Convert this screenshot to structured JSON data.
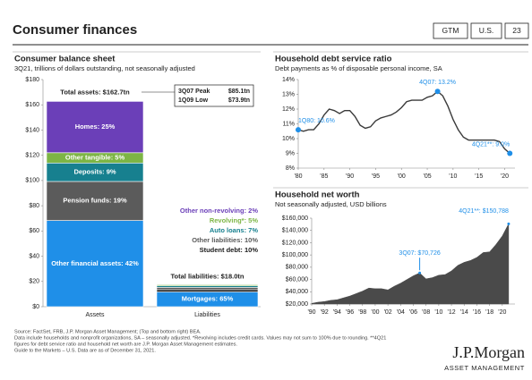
{
  "header": {
    "title": "Consumer finances",
    "tabs": [
      "GTM",
      "U.S.",
      "23"
    ]
  },
  "chart_data": [
    {
      "type": "stacked-bar",
      "title": "Consumer balance sheet",
      "subtitle": "3Q21, trillions of dollars outstanding, not seasonally adjusted",
      "categories": [
        "Assets",
        "Liabilities"
      ],
      "ylim": [
        0,
        180
      ],
      "yticks": [
        {
          "value": 0,
          "label": "$0"
        },
        {
          "value": 20,
          "label": "$20"
        },
        {
          "value": 40,
          "label": "$40"
        },
        {
          "value": 60,
          "label": "$60"
        },
        {
          "value": 80,
          "label": "$80"
        },
        {
          "value": 100,
          "label": "$100"
        },
        {
          "value": 120,
          "label": "$120"
        },
        {
          "value": 140,
          "label": "$140"
        },
        {
          "value": 160,
          "label": "$160"
        },
        {
          "value": 180,
          "label": "$180"
        }
      ],
      "stacks": [
        {
          "total": {
            "value": 162.7,
            "label": "Total assets: $162.7tn"
          },
          "segments": [
            {
              "label": "Other financial assets: 42%",
              "value": 42,
              "color": "#1f8fe8"
            },
            {
              "label": "Pension funds: 19%",
              "value": 19,
              "color": "#5b5b5b"
            },
            {
              "label": "Deposits: 9%",
              "value": 9,
              "color": "#17808f"
            },
            {
              "label": "Other tangible: 5%",
              "value": 5,
              "color": "#7db545"
            },
            {
              "label": "Homes: 25%",
              "value": 25,
              "color": "#6b3fb8"
            }
          ]
        },
        {
          "total": {
            "value": 18.0,
            "label": "Total liabilities: $18.0tn"
          },
          "segments": [
            {
              "label": "Mortgages: 65%",
              "value": 65,
              "color": "#1f8fe8"
            },
            {
              "label": "Student debt: 10%",
              "value": 10,
              "color": "#1a1a1a"
            },
            {
              "label": "Other liabilities: 10%",
              "value": 10,
              "color": "#5b5b5b"
            },
            {
              "label": "Auto loans: 7%",
              "value": 7,
              "color": "#17808f"
            },
            {
              "label": "Revolving*: 5%",
              "value": 5,
              "color": "#7db545"
            },
            {
              "label": "Other non-revolving: 2%",
              "value": 2,
              "color": "#6b3fb8"
            }
          ]
        }
      ],
      "callout": [
        [
          "3Q07 Peak",
          "$85.1tn"
        ],
        [
          "1Q09 Low",
          "$73.9tn"
        ]
      ]
    },
    {
      "type": "line",
      "title": "Household debt service ratio",
      "subtitle": "Debt payments as % of disposable personal income, SA",
      "x": [
        1980,
        1981,
        1982,
        1983,
        1984,
        1985,
        1986,
        1987,
        1988,
        1989,
        1990,
        1991,
        1992,
        1993,
        1994,
        1995,
        1996,
        1997,
        1998,
        1999,
        2000,
        2001,
        2002,
        2003,
        2004,
        2005,
        2006,
        2007,
        2008,
        2009,
        2010,
        2011,
        2012,
        2013,
        2014,
        2015,
        2016,
        2017,
        2018,
        2019,
        2020,
        2021
      ],
      "values": [
        10.6,
        10.5,
        10.6,
        10.6,
        11.0,
        11.6,
        12.0,
        11.9,
        11.7,
        11.9,
        11.9,
        11.5,
        10.9,
        10.7,
        10.8,
        11.2,
        11.4,
        11.5,
        11.6,
        11.8,
        12.1,
        12.5,
        12.6,
        12.6,
        12.6,
        12.8,
        12.9,
        13.2,
        12.9,
        12.2,
        11.3,
        10.6,
        10.1,
        9.9,
        9.9,
        9.9,
        9.9,
        9.9,
        9.9,
        9.8,
        9.3,
        9.0
      ],
      "color": "#3a3a3a",
      "xlim": [
        1980,
        2022
      ],
      "xticks": [
        {
          "value": 1980,
          "label": "'80"
        },
        {
          "value": 1985,
          "label": "'85"
        },
        {
          "value": 1990,
          "label": "'90"
        },
        {
          "value": 1995,
          "label": "'95"
        },
        {
          "value": 2000,
          "label": "'00"
        },
        {
          "value": 2005,
          "label": "'05"
        },
        {
          "value": 2010,
          "label": "'10"
        },
        {
          "value": 2015,
          "label": "'15"
        },
        {
          "value": 2020,
          "label": "'20"
        }
      ],
      "ylim": [
        8,
        14
      ],
      "yticks": [
        {
          "value": 8,
          "label": "8%"
        },
        {
          "value": 9,
          "label": "9%"
        },
        {
          "value": 10,
          "label": "10%"
        },
        {
          "value": 11,
          "label": "11%"
        },
        {
          "value": 12,
          "label": "12%"
        },
        {
          "value": 13,
          "label": "13%"
        },
        {
          "value": 14,
          "label": "14%"
        }
      ],
      "annotation_color": "#1f8fe8",
      "annotations": [
        {
          "x": 1980,
          "value": 10.6,
          "label": "1Q80: 10.6%"
        },
        {
          "x": 2007,
          "value": 13.2,
          "label": "4Q07: 13.2%"
        },
        {
          "x": 2021,
          "value": 9.0,
          "label": "4Q21**: 9.0%"
        }
      ]
    },
    {
      "type": "area",
      "title": "Household net worth",
      "subtitle": "Not seasonally adjusted, USD billions",
      "x": [
        1990,
        1991,
        1992,
        1993,
        1994,
        1995,
        1996,
        1997,
        1998,
        1999,
        2000,
        2001,
        2002,
        2003,
        2004,
        2005,
        2006,
        2007,
        2008,
        2009,
        2010,
        2011,
        2012,
        2013,
        2014,
        2015,
        2016,
        2017,
        2018,
        2019,
        2020,
        2021
      ],
      "values": [
        21000,
        23000,
        24000,
        26000,
        27000,
        30000,
        33000,
        37000,
        41000,
        46000,
        45000,
        45000,
        43000,
        49000,
        54000,
        60000,
        66000,
        70726,
        61000,
        63000,
        67000,
        68000,
        74000,
        83000,
        88000,
        91000,
        96000,
        104000,
        105000,
        117000,
        131000,
        150788
      ],
      "color": "#4a4a4a",
      "xlim": [
        1990,
        2022
      ],
      "xticks": [
        {
          "value": 1990,
          "label": "'90"
        },
        {
          "value": 1992,
          "label": "'92"
        },
        {
          "value": 1994,
          "label": "'94"
        },
        {
          "value": 1996,
          "label": "'96"
        },
        {
          "value": 1998,
          "label": "'98"
        },
        {
          "value": 2000,
          "label": "'00"
        },
        {
          "value": 2002,
          "label": "'02"
        },
        {
          "value": 2004,
          "label": "'04"
        },
        {
          "value": 2006,
          "label": "'06"
        },
        {
          "value": 2008,
          "label": "'08"
        },
        {
          "value": 2010,
          "label": "'10"
        },
        {
          "value": 2012,
          "label": "'12"
        },
        {
          "value": 2014,
          "label": "'14"
        },
        {
          "value": 2016,
          "label": "'16"
        },
        {
          "value": 2018,
          "label": "'18"
        },
        {
          "value": 2020,
          "label": "'20"
        }
      ],
      "ylim": [
        20000,
        160000
      ],
      "yticks": [
        {
          "value": 20000,
          "label": "$20,000"
        },
        {
          "value": 40000,
          "label": "$40,000"
        },
        {
          "value": 60000,
          "label": "$60,000"
        },
        {
          "value": 80000,
          "label": "$80,000"
        },
        {
          "value": 100000,
          "label": "$100,000"
        },
        {
          "value": 120000,
          "label": "$120,000"
        },
        {
          "value": 140000,
          "label": "$140,000"
        },
        {
          "value": 160000,
          "label": "$160,000"
        }
      ],
      "annotation_color": "#1f8fe8",
      "annotations": [
        {
          "x": 2007,
          "value": 70726,
          "label": "3Q07: $70,726"
        },
        {
          "x": 2021,
          "value": 150788,
          "label": "4Q21**: $150,788"
        }
      ]
    }
  ],
  "footer": {
    "lines": [
      "Source: FactSet, FRB, J.P. Morgan Asset Management; (Top and bottom right) BEA.",
      "Data include households and nonprofit organizations, SA – seasonally adjusted. *Revolving includes credit cards. Values may not sum to 100% due to rounding. **4Q21",
      "figures for debt service ratio and household net worth are J.P. Morgan Asset Management estimates.",
      "Guide to the Markets – U.S. Data are as of December 31, 2021."
    ],
    "logo": "J.P.Morgan",
    "logo_sub": "ASSET MANAGEMENT"
  }
}
